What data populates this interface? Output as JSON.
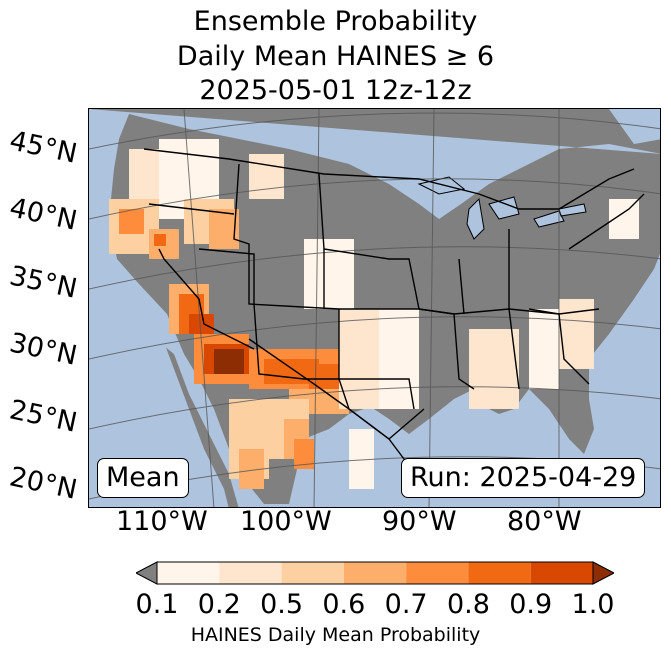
{
  "title": {
    "line1": "Ensemble Probability",
    "line2": "Daily Mean HAINES ≥ 6",
    "line3": "2025-05-01 12z-12z"
  },
  "map": {
    "lat_labels": [
      "45°N",
      "40°N",
      "35°N",
      "30°N",
      "25°N",
      "20°N"
    ],
    "lon_labels": [
      "110°W",
      "100°W",
      "90°W",
      "80°W"
    ],
    "ocean_color": "#aec4de",
    "land_color": "#808080",
    "boundary_color": "#000000"
  },
  "stat_label": "Mean",
  "run_label": "Run: 2025-04-29",
  "colorbar": {
    "ticks": [
      "0.1",
      "0.2",
      "0.5",
      "0.6",
      "0.7",
      "0.8",
      "0.9",
      "1.0"
    ],
    "colors": [
      "#fff5eb",
      "#fee6ce",
      "#fdd0a2",
      "#fdae6b",
      "#fd8d3c",
      "#f16913",
      "#d94801"
    ],
    "under_color": "#808080",
    "over_color": "#8c2d04",
    "label": "HAINES Daily Mean Probability"
  }
}
